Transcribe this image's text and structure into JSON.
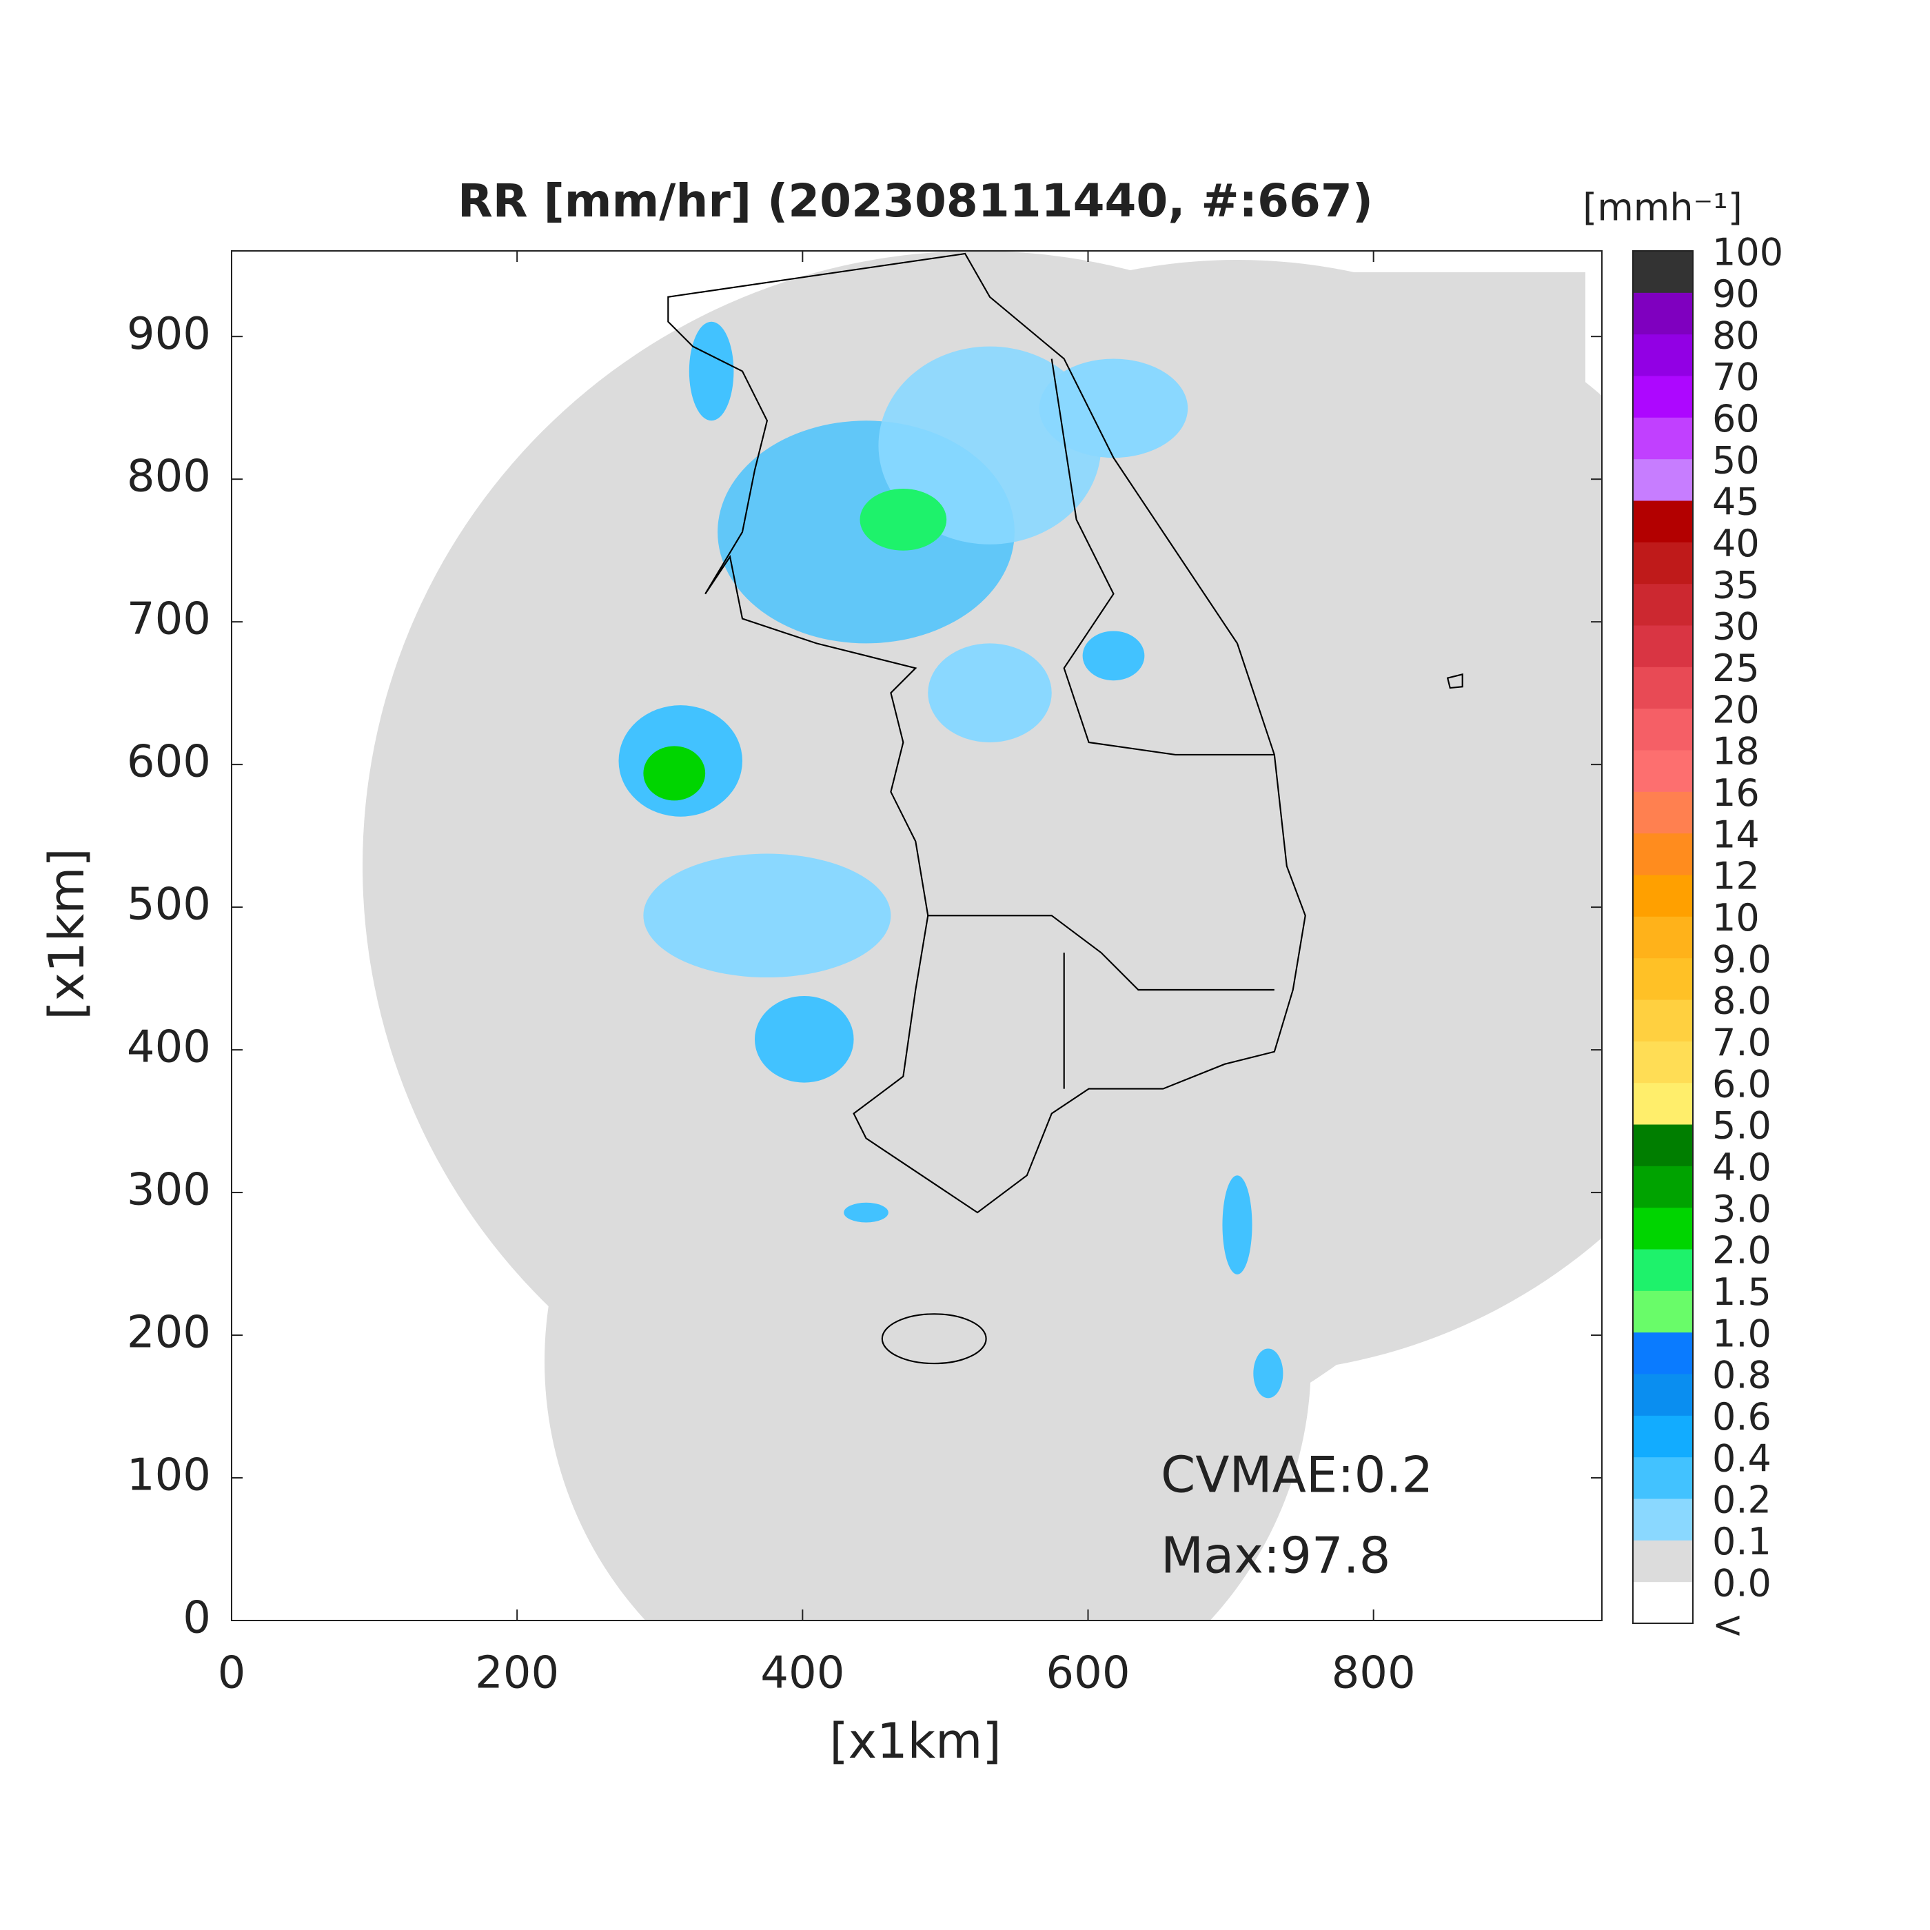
{
  "chart_data": {
    "type": "heatmap",
    "title": "RR [mm/hr] (202308111440, #:667)",
    "xlabel": "[x1km]",
    "ylabel": "[x1km]",
    "xlim": [
      0,
      960
    ],
    "ylim": [
      0,
      960
    ],
    "xticks": [
      0,
      200,
      400,
      600,
      800
    ],
    "yticks": [
      0,
      100,
      200,
      300,
      400,
      500,
      600,
      700,
      800,
      900
    ],
    "colorbar": {
      "label": "[mmh⁻¹]",
      "ticks": [
        "<",
        "0.0",
        "0.1",
        "0.2",
        "0.4",
        "0.6",
        "0.8",
        "1.0",
        "1.5",
        "2.0",
        "3.0",
        "4.0",
        "5.0",
        "6.0",
        "7.0",
        "8.0",
        "9.0",
        "10",
        "12",
        "14",
        "16",
        "18",
        "20",
        "25",
        "30",
        "35",
        "40",
        "45",
        "50",
        "60",
        "70",
        "80",
        "90",
        "100"
      ],
      "colors": [
        "#ffffff",
        "#dcdcdc",
        "#8ad8ff",
        "#42c2ff",
        "#12acff",
        "#0a8ef0",
        "#0a7bff",
        "#69fc69",
        "#1ef26b",
        "#00d500",
        "#00a300",
        "#007e00",
        "#ffee6b",
        "#ffdd55",
        "#ffd040",
        "#ffc126",
        "#ffb21a",
        "#ffa000",
        "#ff8c1e",
        "#ff8050",
        "#fd6f6f",
        "#f55f66",
        "#e84a55",
        "#d93543",
        "#cc2830",
        "#bf1a1a",
        "#b30000",
        "#c77dff",
        "#c140ff",
        "#ad07ff",
        "#9200e4",
        "#7f00bf",
        "#333333"
      ]
    },
    "annotations": [
      "CVMAE:0.2",
      "Max:97.8"
    ]
  }
}
